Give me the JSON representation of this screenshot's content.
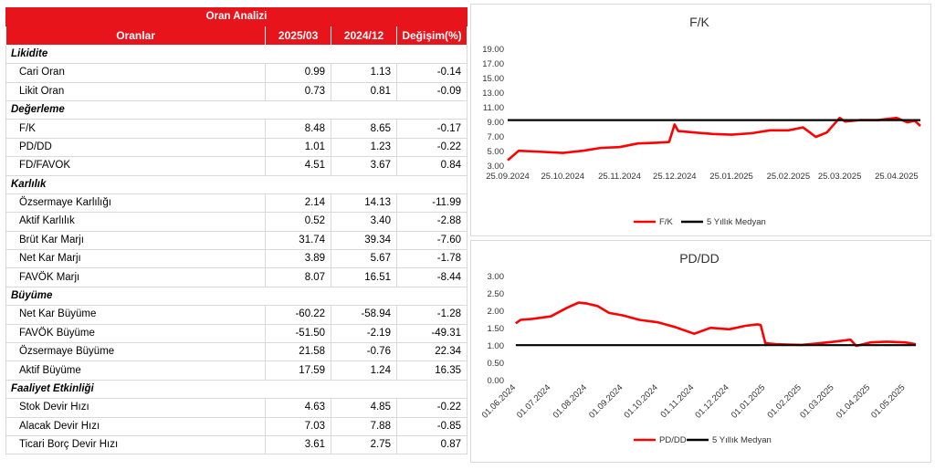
{
  "table": {
    "title": "Oran Analizi",
    "headers": [
      "Oranlar",
      "2025/03",
      "2024/12",
      "Değişim(%)"
    ],
    "sections": [
      {
        "name": "Likidite",
        "rows": [
          {
            "label": "Cari Oran",
            "v1": "0.99",
            "v2": "1.13",
            "chg": "-0.14"
          },
          {
            "label": "Likit Oran",
            "v1": "0.73",
            "v2": "0.81",
            "chg": "-0.09"
          }
        ]
      },
      {
        "name": "Değerleme",
        "rows": [
          {
            "label": "F/K",
            "v1": "8.48",
            "v2": "8.65",
            "chg": "-0.17"
          },
          {
            "label": "PD/DD",
            "v1": "1.01",
            "v2": "1.23",
            "chg": "-0.22"
          },
          {
            "label": "FD/FAVOK",
            "v1": "4.51",
            "v2": "3.67",
            "chg": "0.84"
          }
        ]
      },
      {
        "name": "Karlılık",
        "rows": [
          {
            "label": "Özsermaye Karlılığı",
            "v1": "2.14",
            "v2": "14.13",
            "chg": "-11.99"
          },
          {
            "label": "Aktif Karlılık",
            "v1": "0.52",
            "v2": "3.40",
            "chg": "-2.88"
          },
          {
            "label": "Brüt Kar Marjı",
            "v1": "31.74",
            "v2": "39.34",
            "chg": "-7.60"
          },
          {
            "label": "Net Kar Marjı",
            "v1": "3.89",
            "v2": "5.67",
            "chg": "-1.78"
          },
          {
            "label": "FAVÖK Marjı",
            "v1": "8.07",
            "v2": "16.51",
            "chg": "-8.44"
          }
        ]
      },
      {
        "name": "Büyüme",
        "rows": [
          {
            "label": "Net Kar Büyüme",
            "v1": "-60.22",
            "v2": "-58.94",
            "chg": "-1.28"
          },
          {
            "label": "FAVÖK Büyüme",
            "v1": "-51.50",
            "v2": "-2.19",
            "chg": "-49.31"
          },
          {
            "label": "Özsermaye Büyüme",
            "v1": "21.58",
            "v2": "-0.76",
            "chg": "22.34"
          },
          {
            "label": "Aktif Büyüme",
            "v1": "17.59",
            "v2": "1.24",
            "chg": "16.35"
          }
        ]
      },
      {
        "name": "Faaliyet Etkinliği",
        "rows": [
          {
            "label": "Stok Devir Hızı",
            "v1": "4.63",
            "v2": "4.85",
            "chg": "-0.22"
          },
          {
            "label": "Alacak Devir Hızı",
            "v1": "7.03",
            "v2": "7.88",
            "chg": "-0.85"
          },
          {
            "label": "Ticari Borç Devir Hızı",
            "v1": "3.61",
            "v2": "2.75",
            "chg": "0.87"
          }
        ]
      }
    ]
  },
  "chart_data": [
    {
      "type": "line",
      "title": "F/K",
      "ylim": [
        3.0,
        19.0
      ],
      "yticks": [
        "3.00",
        "5.00",
        "7.00",
        "9.00",
        "11.00",
        "13.00",
        "15.00",
        "17.00",
        "19.00"
      ],
      "xlabels": [
        "25.09.2024",
        "25.10.2024",
        "25.11.2024",
        "25.12.2024",
        "25.01.2025",
        "25.02.2025",
        "25.03.2025",
        "25.04.2025"
      ],
      "series": [
        {
          "name": "F/K",
          "color": "#ff0000",
          "x": [
            "25.09.2024",
            "01.10.2024",
            "10.10.2024",
            "25.10.2024",
            "05.11.2024",
            "15.11.2024",
            "25.11.2024",
            "05.12.2024",
            "15.12.2024",
            "22.12.2024",
            "25.12.2024",
            "27.12.2024",
            "05.01.2025",
            "15.01.2025",
            "25.01.2025",
            "05.02.2025",
            "15.02.2025",
            "25.02.2025",
            "05.03.2025",
            "12.03.2025",
            "18.03.2025",
            "25.03.2025",
            "28.03.2025",
            "05.04.2025",
            "15.04.2025",
            "25.04.2025",
            "01.05.2025",
            "05.05.2025",
            "08.05.2025"
          ],
          "values": [
            3.8,
            5.1,
            5.0,
            4.8,
            5.1,
            5.5,
            5.6,
            6.1,
            6.2,
            6.3,
            8.7,
            7.8,
            7.6,
            7.4,
            7.3,
            7.5,
            7.9,
            7.9,
            8.3,
            7.0,
            7.6,
            9.6,
            9.1,
            9.3,
            9.3,
            9.6,
            9.0,
            9.2,
            8.5
          ]
        },
        {
          "name": "5 Yıllık Medyan",
          "color": "#000000",
          "x": [
            "25.09.2024",
            "08.05.2025"
          ],
          "values": [
            9.3,
            9.3
          ]
        }
      ]
    },
    {
      "type": "line",
      "title": "PD/DD",
      "ylim": [
        0.0,
        3.0
      ],
      "yticks": [
        "0.00",
        "0.50",
        "1.00",
        "1.50",
        "2.00",
        "2.50",
        "3.00"
      ],
      "xlabels": [
        "01.06.2024",
        "01.07.2024",
        "01.08.2024",
        "01.09.2024",
        "01.10.2024",
        "01.11.2024",
        "01.12.2024",
        "01.01.2025",
        "01.02.2025",
        "01.03.2025",
        "01.04.2025",
        "01.05.2025"
      ],
      "series": [
        {
          "name": "PD/DD",
          "color": "#ff0000",
          "x": [
            "01.06.2024",
            "05.06.2024",
            "15.06.2024",
            "01.07.2024",
            "15.07.2024",
            "25.07.2024",
            "01.08.2024",
            "10.08.2024",
            "20.08.2024",
            "01.09.2024",
            "15.09.2024",
            "01.10.2024",
            "15.10.2024",
            "01.11.2024",
            "15.11.2024",
            "01.12.2024",
            "15.12.2024",
            "25.12.2024",
            "28.12.2024",
            "01.01.2025",
            "10.01.2025",
            "20.01.2025",
            "01.02.2025",
            "15.02.2025",
            "01.03.2025",
            "15.03.2025",
            "20.03.2025",
            "01.04.2025",
            "15.04.2025",
            "01.05.2025",
            "10.05.2025"
          ],
          "values": [
            1.65,
            1.75,
            1.78,
            1.85,
            2.1,
            2.25,
            2.22,
            2.15,
            1.95,
            1.88,
            1.75,
            1.68,
            1.55,
            1.35,
            1.52,
            1.48,
            1.58,
            1.62,
            1.6,
            1.08,
            1.05,
            1.04,
            1.03,
            1.07,
            1.12,
            1.18,
            1.0,
            1.1,
            1.12,
            1.1,
            1.05
          ]
        },
        {
          "name": "5 Yıllık Medyan",
          "color": "#000000",
          "x": [
            "01.06.2024",
            "10.05.2025"
          ],
          "values": [
            1.02,
            1.02
          ]
        }
      ]
    }
  ]
}
